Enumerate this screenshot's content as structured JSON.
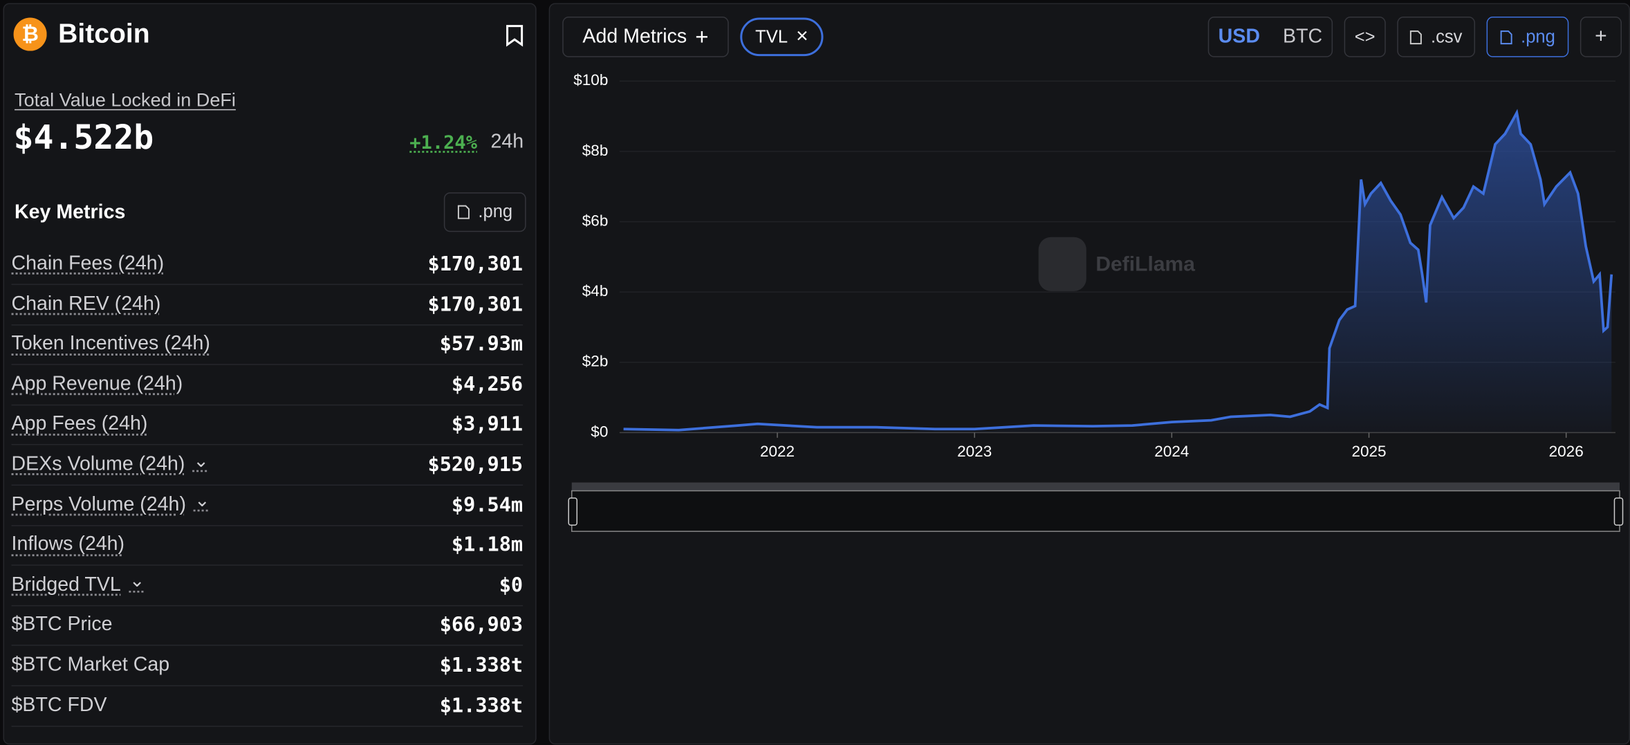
{
  "header": {
    "title": "Bitcoin"
  },
  "tvl": {
    "label": "Total Value Locked in DeFi",
    "value": "$4.522b",
    "change": "+1.24%",
    "period": "24h"
  },
  "key_metrics": {
    "title": "Key Metrics",
    "export": ".png",
    "rows": [
      {
        "label": "Chain Fees (24h)",
        "value": "$170,301",
        "underline": true
      },
      {
        "label": "Chain REV (24h)",
        "value": "$170,301",
        "underline": true
      },
      {
        "label": "Token Incentives (24h)",
        "value": "$57.93m",
        "underline": true
      },
      {
        "label": "App Revenue (24h)",
        "value": "$4,256",
        "underline": true
      },
      {
        "label": "App Fees (24h)",
        "value": "$3,911",
        "underline": true
      },
      {
        "label": "DEXs Volume (24h)",
        "value": "$520,915",
        "underline": true,
        "dropdown": true
      },
      {
        "label": "Perps Volume (24h)",
        "value": "$9.54m",
        "underline": true,
        "dropdown": true
      },
      {
        "label": "Inflows (24h)",
        "value": "$1.18m",
        "underline": true
      },
      {
        "label": "Bridged TVL",
        "value": "$0",
        "underline": true,
        "dropdown": true
      },
      {
        "label": "$BTC Price",
        "value": "$66,903"
      },
      {
        "label": "$BTC Market Cap",
        "value": "$1.338t"
      },
      {
        "label": "$BTC FDV",
        "value": "$1.338t"
      }
    ]
  },
  "toolbar": {
    "add_metrics": "Add Metrics",
    "active_metric": "TVL",
    "currencies": [
      "USD",
      "BTC"
    ],
    "csv": ".csv",
    "png": ".png"
  },
  "chart": {
    "type": "area",
    "watermark": "DefiLlama",
    "color": "#3d6fdc",
    "xlim": [
      2021.2,
      2026.25
    ],
    "xticks": [
      2022,
      2023,
      2024,
      2025,
      2026
    ],
    "ylim": [
      0,
      10
    ],
    "yticks": [
      {
        "value": 0,
        "label": "$0"
      },
      {
        "value": 2,
        "label": "$2b"
      },
      {
        "value": 4,
        "label": "$4b"
      },
      {
        "value": 6,
        "label": "$6b"
      },
      {
        "value": 8,
        "label": "$8b"
      },
      {
        "value": 10,
        "label": "$10b"
      }
    ],
    "x": [
      2021.22,
      2021.5,
      2021.8,
      2021.9,
      2022.2,
      2022.5,
      2022.8,
      2023.0,
      2023.3,
      2023.6,
      2023.8,
      2024.0,
      2024.2,
      2024.3,
      2024.5,
      2024.6,
      2024.7,
      2024.75,
      2024.79,
      2024.8,
      2024.85,
      2024.89,
      2024.93,
      2024.96,
      2024.98,
      2025.01,
      2025.06,
      2025.11,
      2025.16,
      2025.21,
      2025.25,
      2025.27,
      2025.29,
      2025.31,
      2025.37,
      2025.43,
      2025.48,
      2025.53,
      2025.58,
      2025.64,
      2025.69,
      2025.73,
      2025.75,
      2025.77,
      2025.82,
      2025.87,
      2025.89,
      2025.95,
      2026.02,
      2026.06,
      2026.1,
      2026.14,
      2026.17,
      2026.19,
      2026.21,
      2026.23
    ],
    "values": [
      0.1,
      0.07,
      0.2,
      0.25,
      0.15,
      0.15,
      0.1,
      0.1,
      0.2,
      0.18,
      0.2,
      0.3,
      0.35,
      0.45,
      0.5,
      0.45,
      0.6,
      0.8,
      0.7,
      2.4,
      3.2,
      3.5,
      3.6,
      7.2,
      6.5,
      6.8,
      7.1,
      6.6,
      6.2,
      5.4,
      5.2,
      4.5,
      3.7,
      5.9,
      6.7,
      6.1,
      6.4,
      7.0,
      6.8,
      8.2,
      8.5,
      8.9,
      9.1,
      8.5,
      8.2,
      7.2,
      6.5,
      7.0,
      7.4,
      6.8,
      5.3,
      4.3,
      4.5,
      2.9,
      3.0,
      4.5
    ]
  }
}
